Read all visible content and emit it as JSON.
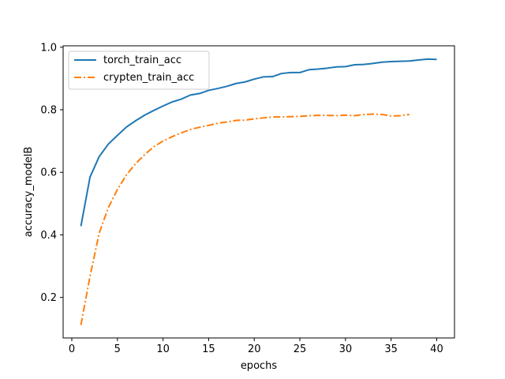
{
  "chart_data": {
    "type": "line",
    "xlabel": "epochs",
    "ylabel": "accuracy_modelB",
    "xlim": [
      -0.95,
      41.95
    ],
    "ylim": [
      0.0705,
      1.0045
    ],
    "xticks": [
      0,
      5,
      10,
      15,
      20,
      25,
      30,
      35,
      40
    ],
    "yticks": [
      0.2,
      0.4,
      0.6,
      0.8,
      1.0
    ],
    "ytick_labels": [
      "0.2",
      "0.4",
      "0.6",
      "0.8",
      "1.0"
    ],
    "grid": false,
    "legend_position": "top-left",
    "series": [
      {
        "name": "torch_train_acc",
        "color": "#1f77b4",
        "linestyle": "solid",
        "x": [
          1,
          2,
          3,
          4,
          5,
          6,
          7,
          8,
          9,
          10,
          11,
          12,
          13,
          14,
          15,
          16,
          17,
          18,
          19,
          20,
          21,
          22,
          23,
          24,
          25,
          26,
          27,
          28,
          29,
          30,
          31,
          32,
          33,
          34,
          35,
          36,
          37,
          38,
          39,
          40
        ],
        "y": [
          0.428,
          0.585,
          0.65,
          0.69,
          0.718,
          0.745,
          0.765,
          0.783,
          0.798,
          0.812,
          0.825,
          0.834,
          0.847,
          0.852,
          0.862,
          0.868,
          0.875,
          0.884,
          0.889,
          0.898,
          0.905,
          0.906,
          0.916,
          0.919,
          0.919,
          0.928,
          0.93,
          0.933,
          0.937,
          0.938,
          0.944,
          0.945,
          0.948,
          0.952,
          0.954,
          0.955,
          0.956,
          0.959,
          0.962,
          0.961
        ]
      },
      {
        "name": "crypten_train_acc",
        "color": "#ff7f0e",
        "linestyle": "dashdot",
        "x": [
          1,
          2,
          3,
          4,
          5,
          6,
          7,
          8,
          9,
          10,
          11,
          12,
          13,
          14,
          15,
          16,
          17,
          18,
          19,
          20,
          21,
          22,
          23,
          24,
          25,
          26,
          27,
          28,
          29,
          30,
          31,
          32,
          33,
          34,
          35,
          36,
          37
        ],
        "y": [
          0.112,
          0.268,
          0.405,
          0.487,
          0.545,
          0.592,
          0.628,
          0.657,
          0.682,
          0.7,
          0.714,
          0.726,
          0.737,
          0.744,
          0.75,
          0.757,
          0.761,
          0.766,
          0.767,
          0.771,
          0.774,
          0.777,
          0.777,
          0.778,
          0.779,
          0.781,
          0.782,
          0.782,
          0.781,
          0.783,
          0.781,
          0.785,
          0.786,
          0.785,
          0.78,
          0.781,
          0.785
        ]
      }
    ]
  }
}
